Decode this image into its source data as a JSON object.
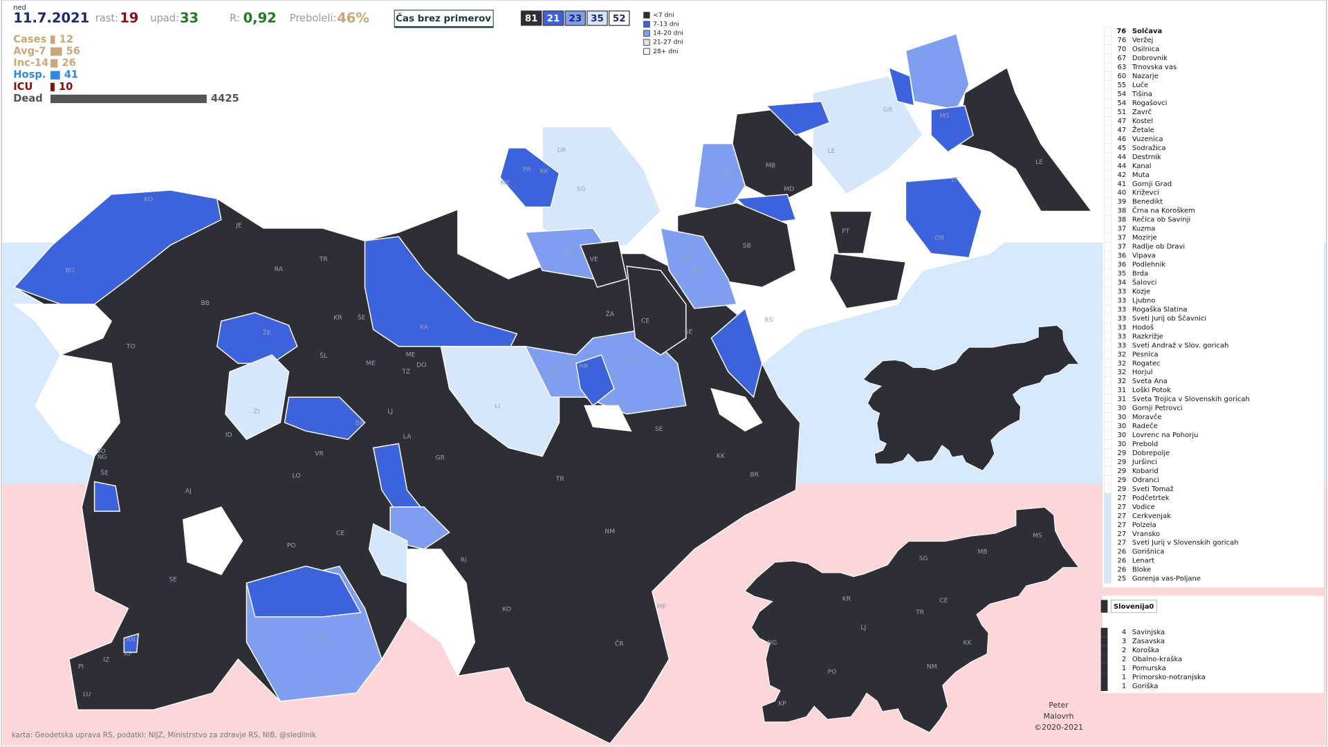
{
  "header": {
    "weekday": "ned",
    "date": "11.7.2021",
    "growth": {
      "label": "rast:",
      "value": 19
    },
    "decline": {
      "label": "upad:",
      "value": 33
    },
    "r": {
      "label": "R:",
      "value": "0,92"
    },
    "recovered": {
      "label": "Preboleli:",
      "value": "46%"
    },
    "button": "Čas brez primerov"
  },
  "category_counts": [
    {
      "value": 81,
      "color": "#2e2e36"
    },
    {
      "value": 21,
      "color": "#3d63dc"
    },
    {
      "value": 23,
      "color": "#7f9ef0"
    },
    {
      "value": 35,
      "color": "#d6e6fb"
    },
    {
      "value": 52,
      "color": "#ffffff"
    }
  ],
  "legend": [
    {
      "label": "<7 dni",
      "color": "#2e2e36"
    },
    {
      "label": "7-13 dni",
      "color": "#3d63dc"
    },
    {
      "label": "14-20 dni",
      "color": "#7f9ef0"
    },
    {
      "label": "21-27 dni",
      "color": "#d6e6fb"
    },
    {
      "label": "28+ dni",
      "color": "#ffffff"
    }
  ],
  "stats": [
    {
      "label": "Cases",
      "value": 12,
      "color": "#c8a878"
    },
    {
      "label": "Avg-7",
      "value": 56,
      "color": "#c8a878"
    },
    {
      "label": "Inc-14",
      "value": 26,
      "color": "#c8a878"
    },
    {
      "label": "Hosp.",
      "value": 41,
      "color": "#2a8ae0"
    },
    {
      "label": "ICU",
      "value": 10,
      "color": "#8b0a0a"
    },
    {
      "label": "Dead",
      "value": 4425,
      "color": "#555555"
    }
  ],
  "municipalities": [
    {
      "days": 76,
      "name": "Solčava"
    },
    {
      "days": 76,
      "name": "Veržej"
    },
    {
      "days": 70,
      "name": "Osilnica"
    },
    {
      "days": 67,
      "name": "Dobrovnik"
    },
    {
      "days": 63,
      "name": "Trnovska vas"
    },
    {
      "days": 60,
      "name": "Nazarje"
    },
    {
      "days": 55,
      "name": "Luče"
    },
    {
      "days": 54,
      "name": "Tišina"
    },
    {
      "days": 54,
      "name": "Rogašovci"
    },
    {
      "days": 51,
      "name": "Zavrč"
    },
    {
      "days": 47,
      "name": "Kostel"
    },
    {
      "days": 47,
      "name": "Žetale"
    },
    {
      "days": 46,
      "name": "Vuzenica"
    },
    {
      "days": 45,
      "name": "Sodražica"
    },
    {
      "days": 44,
      "name": "Destrnik"
    },
    {
      "days": 44,
      "name": "Kanal"
    },
    {
      "days": 42,
      "name": "Muta"
    },
    {
      "days": 41,
      "name": "Gornji Grad"
    },
    {
      "days": 40,
      "name": "Križevci"
    },
    {
      "days": 39,
      "name": "Benedikt"
    },
    {
      "days": 38,
      "name": "Črna na Koroškem"
    },
    {
      "days": 38,
      "name": "Rečica ob Savinji"
    },
    {
      "days": 37,
      "name": "Kuzma"
    },
    {
      "days": 37,
      "name": "Mozirje"
    },
    {
      "days": 37,
      "name": "Radlje ob Dravi"
    },
    {
      "days": 36,
      "name": "Vipava"
    },
    {
      "days": 36,
      "name": "Podlehnik"
    },
    {
      "days": 35,
      "name": "Brda"
    },
    {
      "days": 34,
      "name": "Šalovci"
    },
    {
      "days": 33,
      "name": "Kozje"
    },
    {
      "days": 33,
      "name": "Ljubno"
    },
    {
      "days": 33,
      "name": "Rogaška Slatina"
    },
    {
      "days": 33,
      "name": "Sveti Jurij ob Ščavnici"
    },
    {
      "days": 33,
      "name": "Hodoš"
    },
    {
      "days": 33,
      "name": "Razkrižje"
    },
    {
      "days": 33,
      "name": "Sveti Andraž v Slov. goricah"
    },
    {
      "days": 32,
      "name": "Pesnica"
    },
    {
      "days": 32,
      "name": "Rogatec"
    },
    {
      "days": 32,
      "name": "Horjul"
    },
    {
      "days": 32,
      "name": "Sveta Ana"
    },
    {
      "days": 31,
      "name": "Loški Potok"
    },
    {
      "days": 31,
      "name": "Sveta Trojica v Slovenskih goricah"
    },
    {
      "days": 30,
      "name": "Gornji Petrovci"
    },
    {
      "days": 30,
      "name": "Moravče"
    },
    {
      "days": 30,
      "name": "Radeče"
    },
    {
      "days": 30,
      "name": "Lovrenc na Pohorju"
    },
    {
      "days": 30,
      "name": "Prebold"
    },
    {
      "days": 29,
      "name": "Dobrepolje"
    },
    {
      "days": 29,
      "name": "Juršinci"
    },
    {
      "days": 29,
      "name": "Kobarid"
    },
    {
      "days": 29,
      "name": "Odranci"
    },
    {
      "days": 29,
      "name": "Sveti Tomaž"
    },
    {
      "days": 27,
      "name": "Podčetrtek"
    },
    {
      "days": 27,
      "name": "Vodice"
    },
    {
      "days": 27,
      "name": "Cerkvenjak"
    },
    {
      "days": 27,
      "name": "Polzela"
    },
    {
      "days": 27,
      "name": "Vransko"
    },
    {
      "days": 27,
      "name": "Sveti Jurij v Slovenskih goricah"
    },
    {
      "days": 26,
      "name": "Gorišnica"
    },
    {
      "days": 26,
      "name": "Lenart"
    },
    {
      "days": 26,
      "name": "Bloke"
    },
    {
      "days": 25,
      "name": "Gorenja vas-Poljane"
    }
  ],
  "country": {
    "name": "Slovenija",
    "days": 0
  },
  "regions": [
    {
      "days": 4,
      "name": "Savinjska"
    },
    {
      "days": 3,
      "name": "Zasavska"
    },
    {
      "days": 2,
      "name": "Koroška"
    },
    {
      "days": 2,
      "name": "Obalno-kraška"
    },
    {
      "days": 1,
      "name": "Pomurska"
    },
    {
      "days": 1,
      "name": "Primorsko-notranjska"
    },
    {
      "days": 1,
      "name": "Goriška"
    }
  ],
  "map_labels": [
    "KO",
    "BO",
    "BB",
    "TO",
    "JE",
    "TR",
    "RA",
    "KR",
    "ŠE",
    "ŽE",
    "ŠL",
    "ME",
    "KA",
    "ME",
    "DO",
    "TZ",
    "LJ",
    "ŽI",
    "ID",
    "BR",
    "VR",
    "LO",
    "AJ",
    "ŠE",
    "NG",
    "SO",
    "PO",
    "CE",
    "SE",
    "IB",
    "AN",
    "KP",
    "IZ",
    "PI",
    "LU",
    "RI",
    "KO",
    "ČR",
    "ME",
    "NM",
    "TR",
    "GR",
    "LA",
    "SE",
    "KK",
    "BR",
    "LI",
    "ZA",
    "TR",
    "HR",
    "LA",
    "ŽA",
    "CE",
    "ŠE",
    "VE",
    "ŠO",
    "ZR",
    "SE",
    "RS",
    "SB",
    "PT",
    "OR",
    "MD",
    "MB",
    "RU",
    "SG",
    "DR",
    "RK",
    "PR",
    "ME",
    "GR",
    "LE",
    "MS",
    "LT",
    "LE"
  ],
  "region_map_labels": [
    "MS",
    "SG",
    "MB",
    "KR",
    "CE",
    "TR",
    "LJ",
    "NG",
    "KK",
    "PO",
    "NM",
    "KP"
  ],
  "credits": {
    "author": [
      "Peter",
      "Malovrh"
    ],
    "copyright": "©2020-2021",
    "sources": "karta: Geodetska uprava RS,  podatki: NIJZ, Ministrstvo za zdravje RS, NIB, @sledilnik"
  }
}
